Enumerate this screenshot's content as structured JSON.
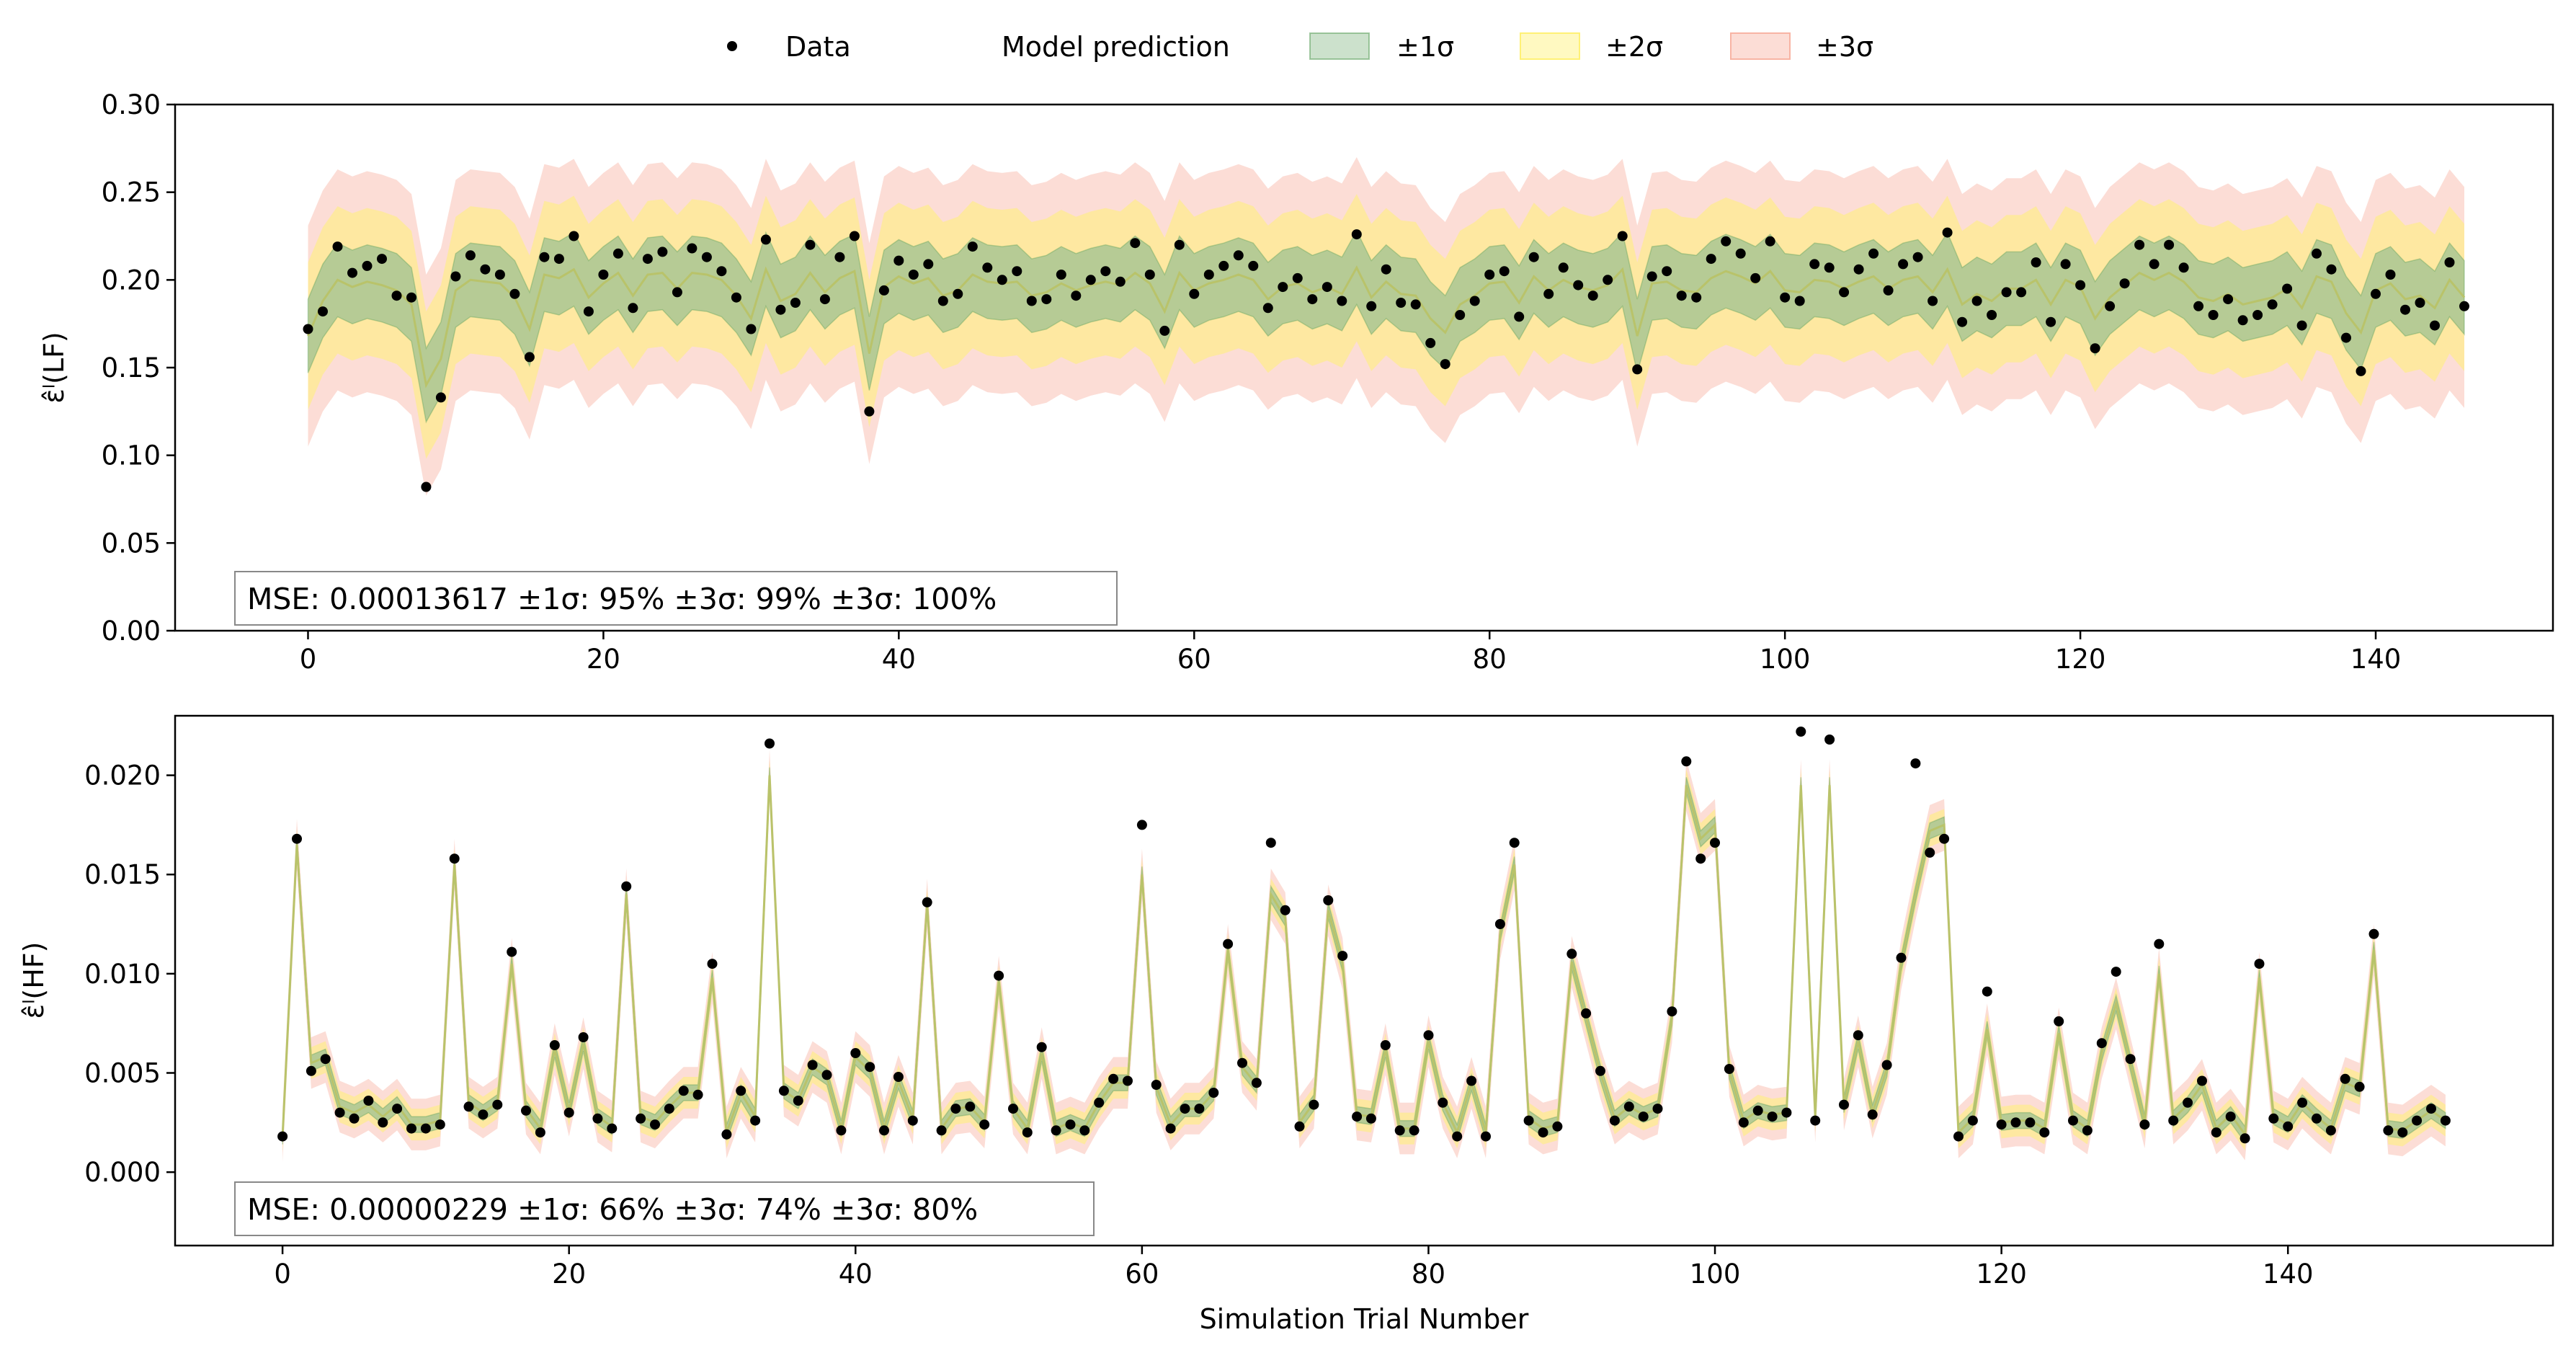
{
  "legend": {
    "data_label": "Data",
    "model_label": "Model prediction",
    "sigma1_label": "±1σ",
    "sigma2_label": "±2σ",
    "sigma3_label": "±3σ"
  },
  "colors": {
    "sigma1_fill": "#8fbc8f",
    "sigma1_edge": "#4f9a4f",
    "sigma2_fill": "#fff176",
    "sigma3_fill": "#f8b4a4",
    "prediction_line": "#b9c36a",
    "data_point": "#000000"
  },
  "chart_data": [
    {
      "type": "line",
      "ylabel": "ε̂ˡ(LF)",
      "xlabel": "",
      "xlim": [
        -9,
        152
      ],
      "ylim": [
        0.0,
        0.3
      ],
      "xticks": [
        0,
        20,
        40,
        60,
        80,
        100,
        120,
        140
      ],
      "yticks": [
        0.0,
        0.05,
        0.1,
        0.15,
        0.2,
        0.25,
        0.3
      ],
      "ytick_labels": [
        "0.00",
        "0.05",
        "0.10",
        "0.15",
        "0.20",
        "0.25",
        "0.30"
      ],
      "annotation": "MSE: 0.00013617 ±1σ: 95%  ±3σ: 99%  ±3σ: 100%",
      "series": [
        {
          "name": "Data",
          "x_start": 0,
          "y": [
            0.172,
            0.182,
            0.219,
            0.204,
            0.208,
            0.212,
            0.191,
            0.19,
            0.082,
            0.133,
            0.202,
            0.214,
            0.206,
            0.203,
            0.192,
            0.156,
            0.213,
            0.212,
            0.225,
            0.182,
            0.203,
            0.215,
            0.184,
            0.212,
            0.216,
            0.193,
            0.218,
            0.213,
            0.205,
            0.19,
            0.172,
            0.223,
            0.183,
            0.187,
            0.22,
            0.189,
            0.213,
            0.225,
            0.125,
            0.194,
            0.211,
            0.203,
            0.209,
            0.188,
            0.192,
            0.219,
            0.207,
            0.2,
            0.205,
            0.188,
            0.189,
            0.203,
            0.191,
            0.2,
            0.205,
            0.199,
            0.221,
            0.203,
            0.171,
            0.22,
            0.192,
            0.203,
            0.208,
            0.214,
            0.208,
            0.184,
            0.196,
            0.201,
            0.189,
            0.196,
            0.188,
            0.226,
            0.185,
            0.206,
            0.187,
            0.186,
            0.164,
            0.152,
            0.18,
            0.188,
            0.203,
            0.205,
            0.179,
            0.213,
            0.192,
            0.207,
            0.197,
            0.191,
            0.2,
            0.225,
            0.149,
            0.202,
            0.205,
            0.191,
            0.19,
            0.212,
            0.222,
            0.215,
            0.201,
            0.222,
            0.19,
            0.188,
            0.209,
            0.207,
            0.193,
            0.206,
            0.215,
            0.194,
            0.209,
            0.213,
            0.188,
            0.227,
            0.176,
            0.188,
            0.18,
            0.193,
            0.193,
            0.21,
            0.176,
            0.209,
            0.197,
            0.161,
            0.185,
            0.198,
            0.22,
            0.209,
            0.22,
            0.207,
            0.185,
            0.18,
            0.189,
            0.177,
            0.18,
            0.186,
            0.195,
            0.174,
            0.215,
            0.206,
            0.167,
            0.148,
            0.192,
            0.203,
            0.183,
            0.187,
            0.174,
            0.21,
            0.185
          ]
        },
        {
          "name": "Model prediction",
          "x_start": 0,
          "y": [
            0.168,
            0.188,
            0.2,
            0.196,
            0.199,
            0.197,
            0.194,
            0.186,
            0.14,
            0.155,
            0.194,
            0.2,
            0.199,
            0.198,
            0.19,
            0.172,
            0.203,
            0.201,
            0.206,
            0.19,
            0.198,
            0.204,
            0.191,
            0.203,
            0.204,
            0.195,
            0.204,
            0.203,
            0.2,
            0.191,
            0.178,
            0.206,
            0.188,
            0.192,
            0.204,
            0.193,
            0.201,
            0.205,
            0.158,
            0.196,
            0.202,
            0.198,
            0.201,
            0.191,
            0.194,
            0.203,
            0.199,
            0.198,
            0.199,
            0.191,
            0.193,
            0.198,
            0.194,
            0.197,
            0.199,
            0.197,
            0.204,
            0.198,
            0.182,
            0.204,
            0.194,
            0.198,
            0.2,
            0.203,
            0.2,
            0.189,
            0.196,
            0.198,
            0.193,
            0.196,
            0.192,
            0.207,
            0.19,
            0.199,
            0.192,
            0.191,
            0.178,
            0.17,
            0.186,
            0.191,
            0.198,
            0.199,
            0.187,
            0.202,
            0.194,
            0.2,
            0.196,
            0.194,
            0.197,
            0.206,
            0.168,
            0.198,
            0.199,
            0.194,
            0.193,
            0.201,
            0.205,
            0.202,
            0.198,
            0.205,
            0.194,
            0.193,
            0.2,
            0.199,
            0.195,
            0.199,
            0.202,
            0.195,
            0.2,
            0.202,
            0.193,
            0.206,
            0.186,
            0.192,
            0.188,
            0.195,
            0.195,
            0.2,
            0.186,
            0.2,
            0.196,
            0.178,
            0.19,
            0.197,
            0.204,
            0.2,
            0.204,
            0.199,
            0.19,
            0.188,
            0.192,
            0.186,
            0.188,
            0.19,
            0.195,
            0.184,
            0.202,
            0.199,
            0.181,
            0.17,
            0.194,
            0.198,
            0.189,
            0.191,
            0.184,
            0.2,
            0.19
          ]
        }
      ],
      "sigma_half_widths": [
        0.021,
        0.042,
        0.063
      ]
    },
    {
      "type": "line",
      "ylabel": "ε̂ˡ(HF)",
      "xlabel": "Simulation Trial Number",
      "xlim": [
        -7.5,
        158.5
      ],
      "ylim": [
        -0.0037,
        0.023
      ],
      "xticks": [
        0,
        20,
        40,
        60,
        80,
        100,
        120,
        140
      ],
      "yticks": [
        0.0,
        0.005,
        0.01,
        0.015,
        0.02
      ],
      "ytick_labels": [
        "0.000",
        "0.005",
        "0.010",
        "0.015",
        "0.020"
      ],
      "annotation": "MSE: 0.00000229 ±1σ: 66%  ±3σ: 74%  ±3σ: 80%",
      "series": [
        {
          "name": "Data",
          "x_start": 0,
          "y": [
            0.0018,
            0.0168,
            0.0051,
            0.0057,
            0.003,
            0.0027,
            0.0036,
            0.0025,
            0.0032,
            0.0022,
            0.0022,
            0.0024,
            0.0158,
            0.0033,
            0.0029,
            0.0034,
            0.0111,
            0.0031,
            0.002,
            0.0064,
            0.003,
            0.0068,
            0.0027,
            0.0022,
            0.0144,
            0.0027,
            0.0024,
            0.0032,
            0.0041,
            0.0039,
            0.0105,
            0.0019,
            0.0041,
            0.0026,
            0.0216,
            0.0041,
            0.0036,
            0.0054,
            0.0049,
            0.0021,
            0.006,
            0.0053,
            0.0021,
            0.0048,
            0.0026,
            0.0136,
            0.0021,
            0.0032,
            0.0033,
            0.0024,
            0.0099,
            0.0032,
            0.002,
            0.0063,
            0.0021,
            0.0024,
            0.0021,
            0.0035,
            0.0047,
            0.0046,
            0.0175,
            0.0044,
            0.0022,
            0.0032,
            0.0032,
            0.004,
            0.0115,
            0.0055,
            0.0045,
            0.0166,
            0.0132,
            0.0023,
            0.0034,
            0.0137,
            0.0109,
            0.0028,
            0.0027,
            0.0064,
            0.0021,
            0.0021,
            0.0069,
            0.0035,
            0.0018,
            0.0046,
            0.0018,
            0.0125,
            0.0166,
            0.0026,
            0.002,
            0.0023,
            0.011,
            0.008,
            0.0051,
            0.0026,
            0.0033,
            0.0028,
            0.0032,
            0.0081,
            0.0207,
            0.0158,
            0.0166,
            0.0052,
            0.0025,
            0.0031,
            0.0028,
            0.003,
            0.0222,
            0.0026,
            0.0218,
            0.0034,
            0.0069,
            0.0029,
            0.0054,
            0.0108,
            0.0206,
            0.0161,
            0.0168,
            0.0018,
            0.0026,
            0.0091,
            0.0024,
            0.0025,
            0.0025,
            0.002,
            0.0076,
            0.0026,
            0.0021,
            0.0065,
            0.0101,
            0.0057,
            0.0024,
            0.0115,
            0.0026,
            0.0035,
            0.0046,
            0.002,
            0.0028,
            0.0017,
            0.0105,
            0.0027,
            0.0023,
            0.0035,
            0.0027,
            0.0021,
            0.0047,
            0.0043,
            0.012,
            0.0021,
            0.002,
            0.0026,
            0.0032,
            0.0026
          ]
        },
        {
          "name": "Model prediction",
          "x_start": 0,
          "y": [
            0.0018,
            0.0165,
            0.0055,
            0.0058,
            0.0033,
            0.003,
            0.0034,
            0.0028,
            0.0034,
            0.0024,
            0.0024,
            0.0026,
            0.0155,
            0.0035,
            0.003,
            0.0035,
            0.0105,
            0.0032,
            0.0022,
            0.0062,
            0.0031,
            0.0065,
            0.0028,
            0.0023,
            0.014,
            0.0028,
            0.0025,
            0.0033,
            0.004,
            0.004,
            0.0098,
            0.002,
            0.004,
            0.0028,
            0.02,
            0.0041,
            0.0036,
            0.0053,
            0.0048,
            0.0022,
            0.0058,
            0.0051,
            0.0022,
            0.0046,
            0.0027,
            0.0135,
            0.0022,
            0.0032,
            0.0033,
            0.0025,
            0.0096,
            0.0032,
            0.0022,
            0.006,
            0.0022,
            0.0025,
            0.0022,
            0.0035,
            0.0045,
            0.0045,
            0.015,
            0.0043,
            0.0024,
            0.0032,
            0.0032,
            0.004,
            0.0112,
            0.0053,
            0.0044,
            0.014,
            0.0128,
            0.0025,
            0.0035,
            0.0132,
            0.0105,
            0.0029,
            0.0028,
            0.0062,
            0.0022,
            0.0022,
            0.0066,
            0.0035,
            0.002,
            0.0045,
            0.002,
            0.012,
            0.0155,
            0.0027,
            0.0022,
            0.0024,
            0.0106,
            0.0078,
            0.005,
            0.0027,
            0.0033,
            0.0029,
            0.0032,
            0.0078,
            0.0195,
            0.0168,
            0.0175,
            0.0051,
            0.0026,
            0.0031,
            0.0029,
            0.003,
            0.0195,
            0.0028,
            0.0195,
            0.0034,
            0.0066,
            0.003,
            0.0052,
            0.0105,
            0.014,
            0.0172,
            0.0175,
            0.002,
            0.0027,
            0.0072,
            0.0025,
            0.0026,
            0.0026,
            0.0022,
            0.007,
            0.0027,
            0.0022,
            0.006,
            0.0085,
            0.0055,
            0.0025,
            0.01,
            0.0027,
            0.0034,
            0.0044,
            0.0022,
            0.0029,
            0.0019,
            0.0098,
            0.0028,
            0.0024,
            0.0035,
            0.0028,
            0.0022,
            0.0045,
            0.0042,
            0.0112,
            0.0022,
            0.0021,
            0.0026,
            0.0031,
            0.0026
          ]
        }
      ],
      "sigma_half_widths": [
        0.0004,
        0.0008,
        0.0013
      ]
    }
  ]
}
